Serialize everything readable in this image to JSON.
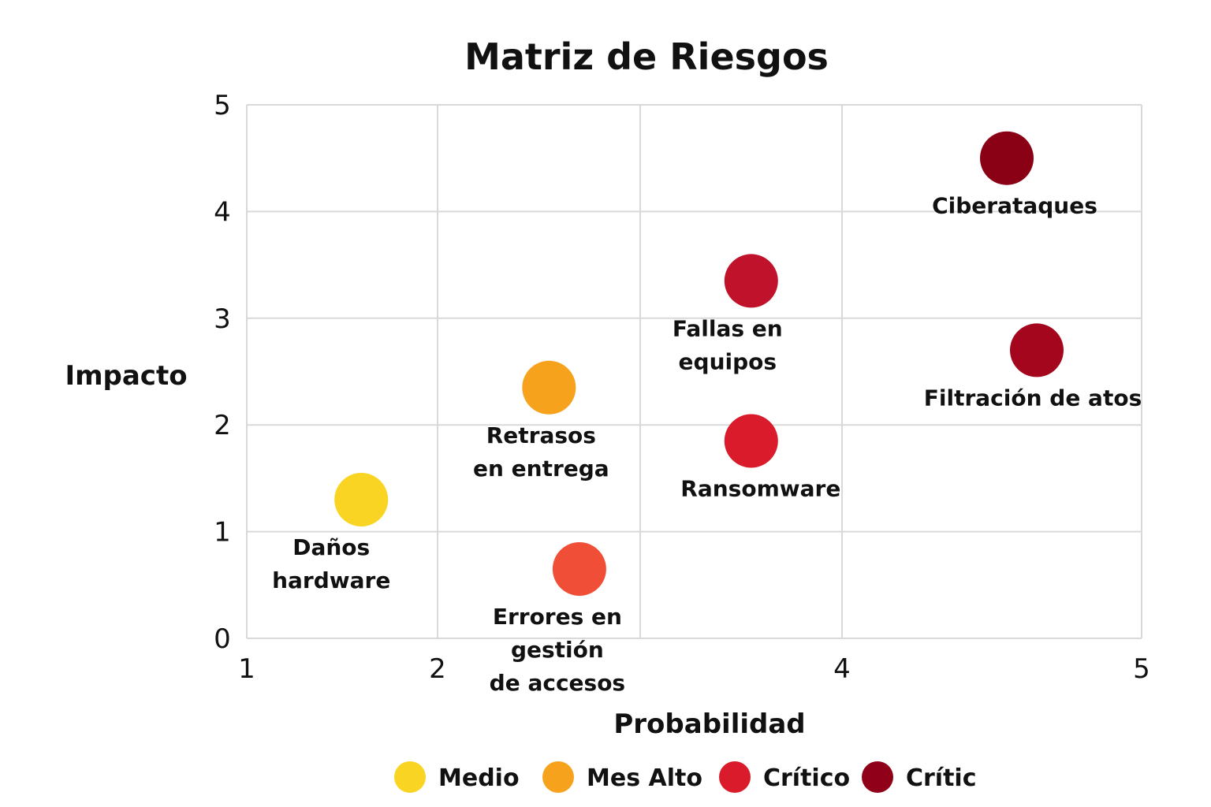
{
  "chart_data": {
    "type": "scatter",
    "title": "Matriz de Riesgos",
    "xlabel": "Probabilidad",
    "ylabel": "Impacto",
    "xlim": [
      1,
      5
    ],
    "ylim": [
      0,
      5
    ],
    "x_ticks": [
      "1",
      "2",
      "",
      "4",
      "5"
    ],
    "x_tick_values": [
      1,
      2,
      3,
      4,
      5
    ],
    "y_ticks": [
      "0",
      "1",
      "2",
      "3",
      "4",
      "5"
    ],
    "y_tick_values": [
      0,
      1,
      2,
      3,
      4,
      5
    ],
    "grid": true,
    "legend_position": "bottom",
    "legend": [
      {
        "label": "Medio",
        "color": "#f9d423"
      },
      {
        "label": "Mes Alto",
        "color": "#f7a21c"
      },
      {
        "label": "Crítico",
        "color": "#d91b2b"
      },
      {
        "label": "Crític",
        "color": "#900018"
      }
    ],
    "points": [
      {
        "label_lines": [
          "Daños",
          "hardware"
        ],
        "x": 1.6,
        "y": 1.3,
        "color": "#f9d423"
      },
      {
        "label_lines": [
          "Retrasos",
          "en entrega"
        ],
        "x": 2.55,
        "y": 2.35,
        "color": "#f7a21c"
      },
      {
        "label_lines": [
          "Errores en",
          "gestión",
          "de accesos"
        ],
        "x": 2.7,
        "y": 0.65,
        "color": "#f04e37"
      },
      {
        "label_lines": [
          "Fallas en",
          "equipos"
        ],
        "x": 3.55,
        "y": 3.35,
        "color": "#c0132b"
      },
      {
        "label_lines": [
          "Ransomware"
        ],
        "x": 3.55,
        "y": 1.85,
        "color": "#d91b2b"
      },
      {
        "label_lines": [
          "Ciberataques"
        ],
        "x": 4.55,
        "y": 4.5,
        "color": "#8a0015"
      },
      {
        "label_lines": [
          "Filtración de atos"
        ],
        "x": 4.65,
        "y": 2.7,
        "color": "#a4061d"
      }
    ]
  }
}
